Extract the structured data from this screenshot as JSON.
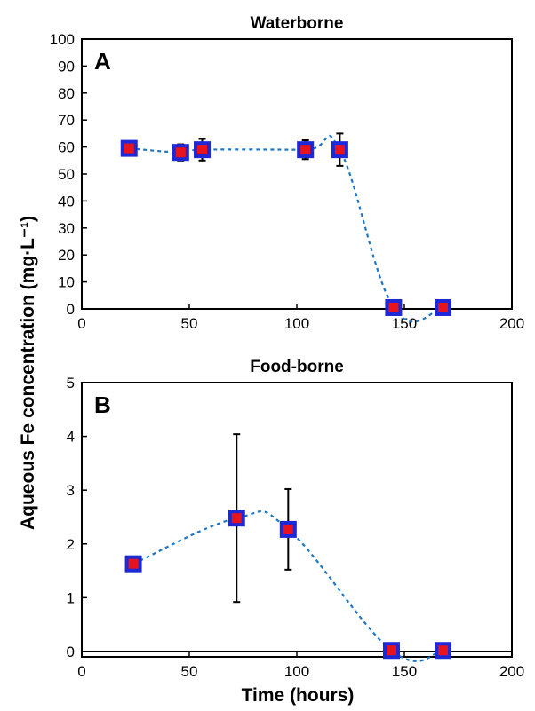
{
  "figure": {
    "shared_xlabel": "Time (hours)",
    "shared_ylabel": "Aqueous Fe concentration (mg·L⁻¹)",
    "colors": {
      "marker_fill": "#e8131b",
      "marker_edge": "#1f28d6",
      "line": "#1f77c4",
      "error_bar": "#000000"
    }
  },
  "chart_data": [
    {
      "type": "line",
      "panel_letter": "A",
      "title": "Waterborne",
      "xlabel": "",
      "ylabel": "Aqueous Fe concentration (mg·L⁻¹)",
      "xlim": [
        0,
        200
      ],
      "ylim": [
        0,
        100
      ],
      "xticks": [
        0,
        50,
        100,
        150,
        200
      ],
      "yticks": [
        0,
        10,
        20,
        30,
        40,
        50,
        60,
        70,
        80,
        90,
        100
      ],
      "grid": false,
      "line_style": "dashed smooth",
      "series": [
        {
          "x": [
            22,
            46,
            56,
            104,
            120,
            145,
            168
          ],
          "y": [
            59.5,
            58,
            59,
            59,
            59,
            0.5,
            0.5
          ],
          "error": [
            1.5,
            3,
            4,
            3.5,
            6,
            0,
            0
          ]
        }
      ]
    },
    {
      "type": "line",
      "panel_letter": "B",
      "title": "Food-borne",
      "xlabel": "Time (hours)",
      "ylabel": "Aqueous Fe concentration (mg·L⁻¹)",
      "xlim": [
        0,
        200
      ],
      "ylim": [
        -0.1,
        5
      ],
      "xticks": [
        0,
        50,
        100,
        150,
        200
      ],
      "yticks": [
        0,
        1,
        2,
        3,
        4,
        5
      ],
      "grid": false,
      "line_style": "dashed smooth",
      "series": [
        {
          "x": [
            24,
            72,
            96,
            144,
            168
          ],
          "y": [
            1.63,
            2.48,
            2.27,
            0.02,
            0.02
          ],
          "error": [
            0,
            1.56,
            0.75,
            0,
            0
          ]
        }
      ]
    }
  ]
}
